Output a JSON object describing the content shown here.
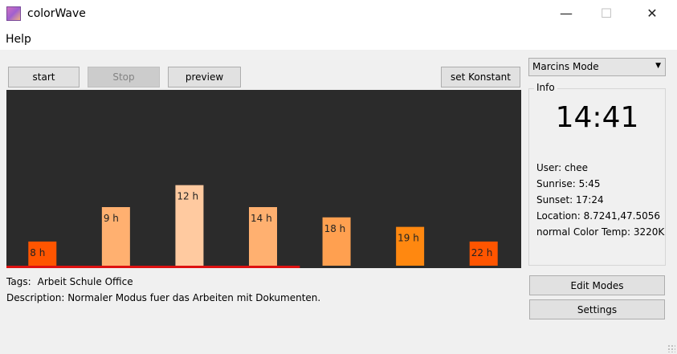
{
  "window": {
    "title": "colorWave",
    "minimize_glyph": "—",
    "maximize_glyph": "☐",
    "close_glyph": "✕"
  },
  "menu": {
    "help": "Help"
  },
  "toolbar": {
    "start": "start",
    "stop": "Stop",
    "preview": "preview",
    "set_konstant": "set Konstant"
  },
  "mode_select": {
    "value": "Marcins Mode",
    "arrow": "▼"
  },
  "info": {
    "title": "Info",
    "clock": "14:41",
    "user": "User: chee",
    "sunrise": "Sunrise: 5:45",
    "sunset": "Sunset: 17:24",
    "location": "Location: 8.7241,47.5056",
    "color_temp": "normal Color Temp: 3220K"
  },
  "tags": {
    "label": "Tags:",
    "value": "Arbeit Schule Office"
  },
  "description": "Description: Normaler Modus fuer das Arbeiten mit Dokumenten.",
  "buttons": {
    "edit_modes": "Edit Modes",
    "settings": "Settings"
  },
  "chart_data": {
    "type": "bar",
    "categories": [
      "8 h",
      "9 h",
      "12 h",
      "14 h",
      "18 h",
      "19 h",
      "22 h"
    ],
    "values": [
      0.33,
      0.8,
      1.1,
      0.8,
      0.66,
      0.53,
      0.33
    ],
    "colors": [
      "#ff5500",
      "#ffb070",
      "#ffcaa0",
      "#ffb070",
      "#ffa050",
      "#ff8810",
      "#ff5500"
    ],
    "ylim": [
      0,
      2.4
    ],
    "progress": 0.57,
    "progress_color": "#dd1111",
    "background": "#2b2b2b"
  }
}
